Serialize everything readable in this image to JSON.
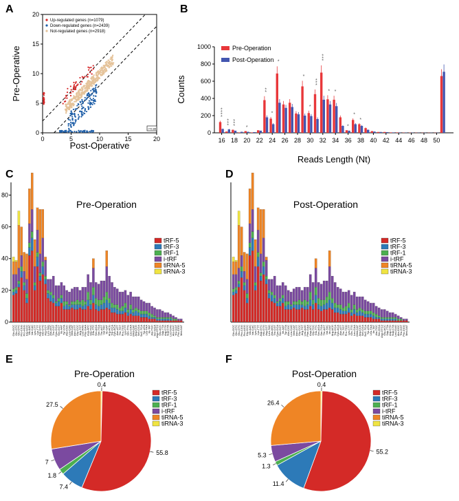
{
  "panels": {
    "a": "A",
    "b": "B",
    "c": "C",
    "d": "D",
    "e": "E",
    "f": "F"
  },
  "chart_data": [
    {
      "panel": "A",
      "type": "scatter",
      "xlabel": "Post-Operative",
      "ylabel": "Pre-Operative",
      "xlim": [
        0,
        20
      ],
      "ylim": [
        0,
        20
      ],
      "xticks": [
        "0",
        "5",
        "10",
        "15",
        "20"
      ],
      "yticks": [
        "0",
        "5",
        "10",
        "15",
        "20"
      ],
      "legend": [
        {
          "label": "Up-regulated genes (n=1079)",
          "color": "#d62728"
        },
        {
          "label": "Down-regulated genes (n=2439)",
          "color": "#1f5fa8"
        },
        {
          "label": "Not-regulated genes (n=2918)",
          "color": "#e5c39a"
        }
      ],
      "corner_label": "r=0.88",
      "colors": {
        "up": "#d62728",
        "down": "#1f5fa8",
        "not": "#e5c39a"
      }
    },
    {
      "panel": "B",
      "type": "bar",
      "xlabel": "Reads Length (Nt)",
      "ylabel": "Counts",
      "ylim": [
        0,
        1000
      ],
      "yticks": [
        "0",
        "200",
        "400",
        "600",
        "800",
        "1000"
      ],
      "xtick_labels": [
        "16",
        "18",
        "20",
        "22",
        "24",
        "26",
        "28",
        "30",
        "32",
        "34",
        "36",
        "38",
        "40",
        "42",
        "44",
        "46",
        "48",
        "50"
      ],
      "categories": [
        16,
        17,
        18,
        19,
        20,
        21,
        22,
        23,
        24,
        25,
        26,
        27,
        28,
        29,
        30,
        31,
        32,
        33,
        34,
        35,
        36,
        37,
        38,
        39,
        40,
        41,
        42,
        43,
        44,
        45,
        46,
        47,
        48,
        49,
        50,
        51
      ],
      "series": [
        {
          "name": "Pre-Operation",
          "color": "#e8373a",
          "values": [
            125,
            15,
            35,
            5,
            20,
            5,
            30,
            380,
            165,
            690,
            330,
            350,
            225,
            540,
            230,
            450,
            700,
            390,
            385,
            180,
            30,
            150,
            100,
            55,
            20,
            10,
            10,
            5,
            5,
            3,
            3,
            2,
            2,
            2,
            2,
            660
          ]
        },
        {
          "name": "Post-Operation",
          "color": "#4356b0",
          "values": [
            45,
            40,
            25,
            12,
            12,
            8,
            25,
            180,
            100,
            350,
            290,
            300,
            215,
            200,
            195,
            160,
            385,
            330,
            310,
            80,
            25,
            100,
            80,
            35,
            15,
            10,
            8,
            5,
            5,
            3,
            3,
            2,
            2,
            2,
            2,
            710
          ]
        }
      ],
      "significance": [
        "****",
        "***",
        "***",
        "",
        "*",
        "",
        "",
        "**",
        "*",
        "*",
        "",
        "",
        "",
        "*",
        "*",
        "***",
        "***",
        "*",
        "*",
        "",
        "*",
        "*",
        "*",
        "",
        "",
        "",
        "",
        "",
        "",
        "",
        "",
        "",
        "",
        "",
        "",
        ""
      ]
    },
    {
      "panel": "C",
      "type": "bar",
      "stacked": true,
      "title": "Pre-Operation",
      "yticks": [
        "0",
        "20",
        "40",
        "60",
        "80"
      ],
      "ylim": [
        0,
        88
      ],
      "legend": [
        "tRF-5",
        "tRF-3",
        "tRF-1",
        "i-tRF",
        "tiRNA-5",
        "tiRNA-3"
      ],
      "colors": [
        "#d42a27",
        "#2d7ab8",
        "#4caf50",
        "#7b4aa0",
        "#ef8525",
        "#f0e442"
      ],
      "categories": [
        "Gln-GCC",
        "Gln-CTC",
        "Glu-CTC",
        "Pro-CGG",
        "Pro-AGG",
        "Gly-GCC",
        "Val-AAC",
        "Val-CAC",
        "Lys-CTT",
        "Lys-TTT",
        "Asp-GTC",
        "His-GTG",
        "Arg-CCT",
        "Leu-TAG",
        "Ala-AGC",
        "Thr-CGT",
        "Cys-GCA",
        "Ser-GCT",
        "Ile-AAT",
        "Tyr-GTA",
        "Ala-CGC",
        "Leu-CAG",
        "Met-CAT",
        "Asn-GTT",
        "Gly-CCC",
        "Arg-TCT",
        "Leu-AAG",
        "Phe-GAA",
        "Asp-ATC",
        "Gly-TCC",
        "Glu-TTC",
        "Ser-AGA",
        "Ser-TGA",
        "Thr-AGT",
        "Val-TAC",
        "Ile-GAT",
        "Arg-ACG",
        "Trp-CCA",
        "Cys-ACA",
        "Asn-ATT",
        "Thr-TGT",
        "Pro-TGG",
        "Lys-CTT",
        "Gln-TTG",
        "Leu-CAA",
        "iMet-CAT",
        "Arg-CCG",
        "Ser-CGA",
        "SeC-TCA",
        "Tyr-ATA",
        "Leu-TAA",
        "Ile-TAT",
        "Ala-TGC",
        "Ser-GGA",
        "Asp-GTC2",
        "Gly-ACC",
        "Sup-TTA",
        "Arg-CTG",
        "Sup-CTA",
        "Leu-GAG",
        "Ala-GGC",
        "Thr-GGT",
        "Pro-GGG",
        "Met-GAT"
      ],
      "values": [
        [
          17,
          2,
          2,
          9,
          8,
          3
        ],
        [
          18,
          2,
          2,
          8,
          8,
          1
        ],
        [
          22,
          2,
          2,
          8,
          27,
          9
        ],
        [
          28,
          4,
          3,
          7,
          18,
          0
        ],
        [
          20,
          3,
          2,
          7,
          12,
          0
        ],
        [
          12,
          3,
          3,
          9,
          16,
          0
        ],
        [
          42,
          5,
          3,
          12,
          22,
          0
        ],
        [
          45,
          8,
          4,
          14,
          23,
          0
        ],
        [
          20,
          3,
          2,
          10,
          17,
          0
        ],
        [
          35,
          6,
          3,
          14,
          14,
          0
        ],
        [
          26,
          3,
          2,
          12,
          28,
          0
        ],
        [
          30,
          5,
          3,
          15,
          18,
          0
        ],
        [
          24,
          3,
          2,
          10,
          2,
          0
        ],
        [
          15,
          3,
          2,
          7,
          0,
          0
        ],
        [
          13,
          4,
          2,
          8,
          0,
          0
        ],
        [
          12,
          3,
          2,
          12,
          0,
          0
        ],
        [
          10,
          2,
          1,
          10,
          0,
          0
        ],
        [
          10,
          3,
          2,
          8,
          0,
          0
        ],
        [
          12,
          3,
          2,
          8,
          0,
          0
        ],
        [
          8,
          2,
          3,
          10,
          0,
          0
        ],
        [
          8,
          3,
          2,
          7,
          0,
          0
        ],
        [
          8,
          2,
          1,
          8,
          0,
          0
        ],
        [
          9,
          2,
          2,
          8,
          0,
          0
        ],
        [
          8,
          3,
          2,
          9,
          0,
          0
        ],
        [
          8,
          3,
          3,
          8,
          0,
          0
        ],
        [
          9,
          2,
          2,
          7,
          0,
          0
        ],
        [
          8,
          2,
          4,
          8,
          0,
          0
        ],
        [
          8,
          3,
          2,
          9,
          0,
          0
        ],
        [
          10,
          4,
          5,
          11,
          0,
          0
        ],
        [
          8,
          3,
          3,
          11,
          0,
          0
        ],
        [
          12,
          5,
          5,
          12,
          6,
          0
        ],
        [
          8,
          3,
          4,
          10,
          0,
          0
        ],
        [
          7,
          3,
          4,
          10,
          0,
          0
        ],
        [
          8,
          3,
          3,
          12,
          0,
          0
        ],
        [
          8,
          4,
          4,
          10,
          0,
          0
        ],
        [
          9,
          5,
          5,
          16,
          10,
          0
        ],
        [
          8,
          4,
          3,
          14,
          0,
          0
        ],
        [
          6,
          3,
          3,
          13,
          0,
          0
        ],
        [
          6,
          3,
          2,
          11,
          0,
          0
        ],
        [
          5,
          3,
          3,
          10,
          0,
          0
        ],
        [
          5,
          2,
          2,
          10,
          0,
          0
        ],
        [
          5,
          2,
          3,
          9,
          0,
          0
        ],
        [
          6,
          3,
          3,
          8,
          0,
          0
        ],
        [
          4,
          2,
          2,
          9,
          0,
          0
        ],
        [
          5,
          3,
          3,
          8,
          0,
          0
        ],
        [
          4,
          2,
          2,
          8,
          0,
          0
        ],
        [
          4,
          3,
          2,
          7,
          0,
          0
        ],
        [
          4,
          2,
          2,
          8,
          0,
          0
        ],
        [
          3,
          2,
          2,
          7,
          0,
          0
        ],
        [
          3,
          2,
          2,
          6,
          0,
          0
        ],
        [
          3,
          2,
          2,
          5,
          0,
          0
        ],
        [
          2,
          2,
          2,
          6,
          0,
          0
        ],
        [
          2,
          1,
          2,
          5,
          0,
          0
        ],
        [
          2,
          1,
          1,
          5,
          0,
          0
        ],
        [
          1,
          1,
          1,
          5,
          0,
          0
        ],
        [
          1,
          1,
          1,
          5,
          0,
          0
        ],
        [
          1,
          1,
          1,
          4,
          0,
          0
        ],
        [
          1,
          1,
          1,
          3,
          0,
          0
        ],
        [
          1,
          1,
          1,
          3,
          0,
          0
        ],
        [
          1,
          1,
          1,
          2,
          0,
          0
        ],
        [
          1,
          0,
          1,
          2,
          0,
          0
        ],
        [
          1,
          0,
          1,
          1,
          0,
          0
        ],
        [
          1,
          0,
          0,
          1,
          0,
          0
        ],
        [
          1,
          0,
          0,
          1,
          0,
          0
        ]
      ]
    },
    {
      "panel": "D",
      "type": "bar",
      "stacked": true,
      "title": "Post-Operation",
      "ylim": [
        0,
        88
      ],
      "legend": [
        "tRF-5",
        "tRF-3",
        "tRF-1",
        "i-tRF",
        "tiRNA-5",
        "tiRNA-3"
      ],
      "colors": [
        "#d42a27",
        "#2d7ab8",
        "#4caf50",
        "#7b4aa0",
        "#ef8525",
        "#f0e442"
      ]
    },
    {
      "panel": "E",
      "type": "pie",
      "title": "Pre-Operation",
      "labels": [
        "tRF-5",
        "tRF-3",
        "tRF-1",
        "i-tRF",
        "tiRNA-5",
        "tiRNA-3"
      ],
      "values": [
        55.8,
        7.4,
        1.8,
        7,
        27.5,
        0.4
      ],
      "value_labels": [
        "55.8",
        "7.4",
        "1.8",
        "7",
        "27.5",
        "0.4"
      ],
      "colors": [
        "#d42a27",
        "#2d7ab8",
        "#4caf50",
        "#7b4aa0",
        "#ef8525",
        "#f0e442"
      ]
    },
    {
      "panel": "F",
      "type": "pie",
      "title": "Post-Operation",
      "labels": [
        "tRF-5",
        "tRF-3",
        "tRF-1",
        "i-tRF",
        "tiRNA-5",
        "tiRNA-3"
      ],
      "values": [
        55.2,
        11.4,
        1.3,
        5.3,
        26.4,
        0.4
      ],
      "value_labels": [
        "55.2",
        "11.4",
        "1.3",
        "5.3",
        "26.4",
        "0.4"
      ],
      "colors": [
        "#d42a27",
        "#2d7ab8",
        "#4caf50",
        "#7b4aa0",
        "#ef8525",
        "#f0e442"
      ]
    }
  ]
}
